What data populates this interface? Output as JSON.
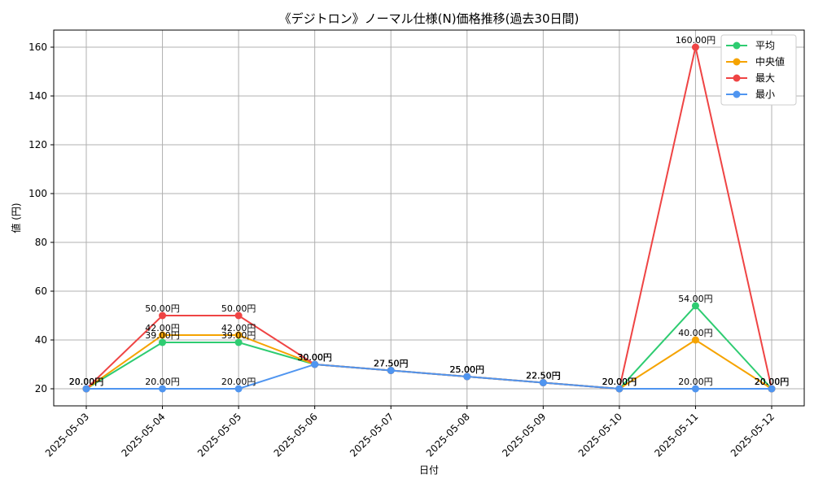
{
  "chart_data": {
    "type": "line",
    "title": "《デジトロン》ノーマル仕様(N)価格推移(過去30日間)",
    "xlabel": "日付",
    "ylabel": "値 (円)",
    "ylim": [
      13,
      167
    ],
    "yticks": [
      20,
      40,
      60,
      80,
      100,
      120,
      140,
      160
    ],
    "grid": true,
    "legend_position": "top-right",
    "categories": [
      "2025-05-03",
      "2025-05-04",
      "2025-05-05",
      "2025-05-06",
      "2025-05-07",
      "2025-05-08",
      "2025-05-09",
      "2025-05-10",
      "2025-05-11",
      "2025-05-12"
    ],
    "series": [
      {
        "name": "平均",
        "color": "#2ecc71",
        "values": [
          20,
          39,
          39,
          30,
          27.5,
          25,
          22.5,
          20,
          54,
          20
        ],
        "labels": [
          "20.00円",
          "39.00円",
          "39.00円",
          "30.00円",
          "27.50円",
          "25.00円",
          "22.50円",
          "20.00円",
          "54.00円",
          "20.00円"
        ]
      },
      {
        "name": "中央値",
        "color": "#f5a300",
        "values": [
          20,
          42,
          42,
          30,
          27.5,
          25,
          22.5,
          20,
          40,
          20
        ],
        "labels": [
          "20.00円",
          "42.00円",
          "42.00円",
          "30.00円",
          "27.50円",
          "25.00円",
          "22.50円",
          "20.00円",
          "40.00円",
          "20.00円"
        ]
      },
      {
        "name": "最大",
        "color": "#ef4444",
        "values": [
          20,
          50,
          50,
          30,
          27.5,
          25,
          22.5,
          20,
          160,
          20
        ],
        "labels": [
          "20.00円",
          "50.00円",
          "50.00円",
          "30.00円",
          "27.50円",
          "25.00円",
          "22.50円",
          "20.00円",
          "160.00円",
          "20.00円"
        ]
      },
      {
        "name": "最小",
        "color": "#4f95f0",
        "values": [
          20,
          20,
          20,
          30,
          27.5,
          25,
          22.5,
          20,
          20,
          20
        ],
        "labels": [
          "20.00円",
          "20.00円",
          "20.00円",
          "30.00円",
          "27.50円",
          "25.00円",
          "22.50円",
          "20.00円",
          "20.00円",
          "20.00円"
        ]
      }
    ]
  }
}
